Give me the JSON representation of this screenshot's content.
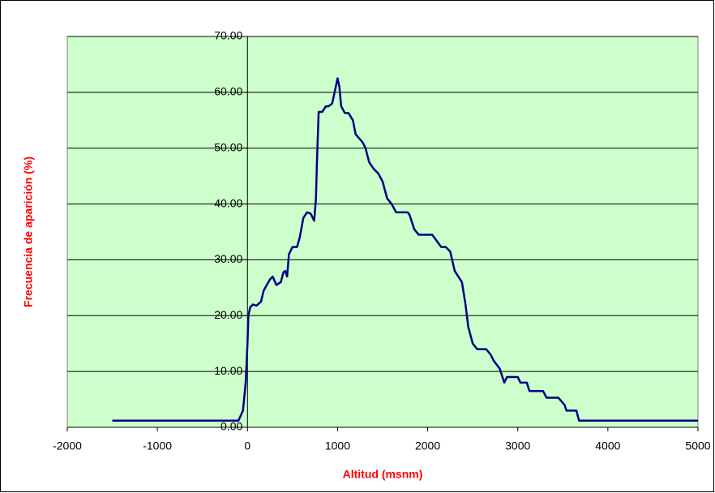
{
  "chart_data": {
    "type": "line",
    "xlabel": "Altitud (msnm)",
    "ylabel": "Frecuencia de aparición (%)",
    "x": [
      -1500,
      -100,
      -50,
      -20,
      0,
      10,
      30,
      60,
      100,
      150,
      180,
      250,
      280,
      320,
      370,
      400,
      420,
      440,
      460,
      500,
      550,
      580,
      620,
      660,
      700,
      740,
      760,
      770,
      790,
      830,
      870,
      900,
      940,
      980,
      1000,
      1020,
      1040,
      1080,
      1120,
      1170,
      1200,
      1280,
      1310,
      1350,
      1400,
      1450,
      1500,
      1550,
      1600,
      1650,
      1780,
      1800,
      1850,
      1900,
      2050,
      2150,
      2200,
      2250,
      2300,
      2380,
      2420,
      2450,
      2500,
      2550,
      2650,
      2700,
      2730,
      2800,
      2850,
      2880,
      3000,
      3030,
      3100,
      3130,
      3280,
      3320,
      3450,
      3520,
      3540,
      3650,
      3680,
      5000
    ],
    "series": [
      {
        "color": "#000080",
        "values": [
          1.2,
          1.2,
          3,
          8,
          15,
          20,
          21.5,
          22,
          21.8,
          22.5,
          24.5,
          26.5,
          27,
          25.5,
          26,
          27.8,
          28,
          27,
          31,
          32.3,
          32.3,
          34,
          37.5,
          38.5,
          38.3,
          37,
          41,
          47,
          56.5,
          56.5,
          57.5,
          57.5,
          58,
          61,
          62.5,
          61,
          57.5,
          56.3,
          56.3,
          55,
          52.5,
          51,
          50,
          47.5,
          46.3,
          45.5,
          44,
          41,
          40,
          38.5,
          38.5,
          38,
          35.5,
          34.5,
          34.5,
          32.3,
          32.3,
          31.5,
          28,
          26,
          22,
          18,
          15,
          14,
          14,
          13,
          12,
          10.5,
          8,
          9,
          9,
          8,
          8,
          6.5,
          6.5,
          5.3,
          5.3,
          4,
          3,
          3,
          1.2,
          1.2
        ]
      }
    ],
    "xlim": [
      -2000,
      5000
    ],
    "xticks": [
      -2000,
      -1000,
      0,
      1000,
      2000,
      3000,
      4000,
      5000
    ],
    "ylim": [
      0,
      70
    ],
    "yticks": [
      {
        "value": 0,
        "label": "0.00"
      },
      {
        "value": 10,
        "label": "10.00"
      },
      {
        "value": 20,
        "label": "20.00"
      },
      {
        "value": 30,
        "label": "30.00"
      },
      {
        "value": 40,
        "label": "40.00"
      },
      {
        "value": 50,
        "label": "50.00"
      },
      {
        "value": 60,
        "label": "60.00"
      },
      {
        "value": 70,
        "label": "70.00"
      }
    ],
    "grid": true,
    "plot_background": "#ccffcc"
  }
}
